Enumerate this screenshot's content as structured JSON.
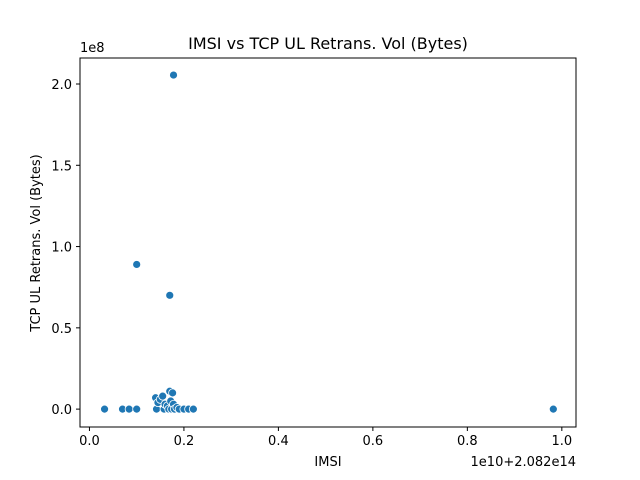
{
  "chart_data": {
    "type": "scatter",
    "title": "IMSI vs TCP UL Retrans. Vol (Bytes)",
    "xlabel": "IMSI",
    "ylabel": "TCP UL Retrans. Vol (Bytes)",
    "x_offset_text": "1e10+2.082e14",
    "y_scale_text": "1e8",
    "x_ticks": [
      0.0,
      0.2,
      0.4,
      0.6,
      0.8,
      1.0
    ],
    "x_tick_labels": [
      "0.0",
      "0.2",
      "0.4",
      "0.6",
      "0.8",
      "1.0"
    ],
    "y_ticks": [
      0.0,
      0.5,
      1.0,
      1.5,
      2.0
    ],
    "y_tick_labels": [
      "0.0",
      "0.5",
      "1.0",
      "1.5",
      "2.0"
    ],
    "xlim": [
      -0.02,
      1.03
    ],
    "ylim": [
      -0.11,
      2.16
    ],
    "grid": false,
    "marker_color": "#1f77b4",
    "points": [
      {
        "x": 0.178,
        "y": 2.055
      },
      {
        "x": 0.1,
        "y": 0.89
      },
      {
        "x": 0.17,
        "y": 0.7
      },
      {
        "x": 0.032,
        "y": 0.0
      },
      {
        "x": 0.07,
        "y": 0.0
      },
      {
        "x": 0.084,
        "y": 0.0
      },
      {
        "x": 0.1,
        "y": 0.0
      },
      {
        "x": 0.14,
        "y": 0.07
      },
      {
        "x": 0.142,
        "y": 0.0
      },
      {
        "x": 0.145,
        "y": 0.04
      },
      {
        "x": 0.15,
        "y": 0.06
      },
      {
        "x": 0.155,
        "y": 0.08
      },
      {
        "x": 0.158,
        "y": 0.0
      },
      {
        "x": 0.16,
        "y": 0.03
      },
      {
        "x": 0.165,
        "y": 0.02
      },
      {
        "x": 0.168,
        "y": 0.0
      },
      {
        "x": 0.17,
        "y": 0.11
      },
      {
        "x": 0.172,
        "y": 0.05
      },
      {
        "x": 0.174,
        "y": 0.0
      },
      {
        "x": 0.176,
        "y": 0.1
      },
      {
        "x": 0.178,
        "y": 0.03
      },
      {
        "x": 0.18,
        "y": 0.0
      },
      {
        "x": 0.185,
        "y": 0.01
      },
      {
        "x": 0.19,
        "y": 0.0
      },
      {
        "x": 0.2,
        "y": 0.0
      },
      {
        "x": 0.21,
        "y": 0.0
      },
      {
        "x": 0.22,
        "y": 0.0
      },
      {
        "x": 0.982,
        "y": 0.0
      }
    ]
  }
}
